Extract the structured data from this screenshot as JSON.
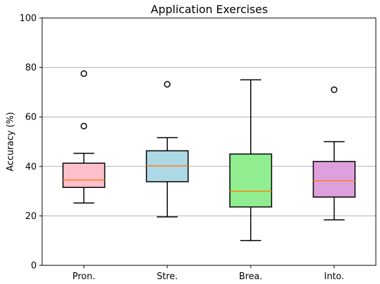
{
  "chart_data": {
    "type": "box",
    "title": "Application Exercises",
    "xlabel": "",
    "ylabel": "Accuracy (%)",
    "ylim": [
      0,
      100
    ],
    "yticks": [
      0,
      20,
      40,
      60,
      80,
      100
    ],
    "grid": "horizontal at y ticks",
    "categories": [
      "Pron.",
      "Stre.",
      "Brea.",
      "Into."
    ],
    "boxes": [
      {
        "label": "Pron.",
        "whisker_low": 25.2,
        "q1": 31.5,
        "median": 34.5,
        "q3": 41.3,
        "whisker_high": 45.3,
        "outliers": [
          56.3,
          77.5
        ],
        "color": "#ffc0cb"
      },
      {
        "label": "Stre.",
        "whisker_low": 19.6,
        "q1": 33.8,
        "median": 40.2,
        "q3": 46.3,
        "whisker_high": 51.6,
        "outliers": [
          73.2
        ],
        "color": "#add8e6"
      },
      {
        "label": "Brea.",
        "whisker_low": 10.0,
        "q1": 23.6,
        "median": 30.0,
        "q3": 45.0,
        "whisker_high": 75.0,
        "outliers": [],
        "color": "#90ee90"
      },
      {
        "label": "Into.",
        "whisker_low": 18.4,
        "q1": 27.6,
        "median": 34.2,
        "q3": 42.0,
        "whisker_high": 50.0,
        "outliers": [
          71.0
        ],
        "color": "#dda0dd"
      }
    ],
    "median_color": "#ff7f0e",
    "grid_color": "#b0b0b0"
  }
}
